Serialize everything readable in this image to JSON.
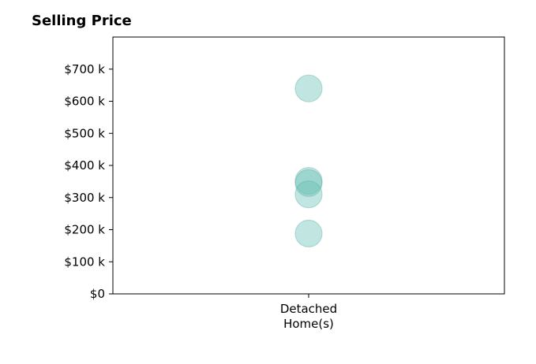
{
  "chart_data": {
    "type": "scatter",
    "title": "Selling Price",
    "categories": [
      "Detached\nHome(s)"
    ],
    "series": [
      {
        "category": "Detached\nHome(s)",
        "values": [
          640000,
          352000,
          345000,
          310000,
          188000
        ]
      }
    ],
    "y_ticks": [
      0,
      100000,
      200000,
      300000,
      400000,
      500000,
      600000,
      700000
    ],
    "y_tick_labels": [
      "$0",
      "$100 k",
      "$200 k",
      "$300 k",
      "$400 k",
      "$500 k",
      "$600 k",
      "$700 k"
    ],
    "ylim": [
      0,
      800000
    ],
    "grid": false,
    "colors": {
      "point": "#6cc1b6",
      "point_stroke": "#4fa89d",
      "axis": "#000000"
    }
  }
}
